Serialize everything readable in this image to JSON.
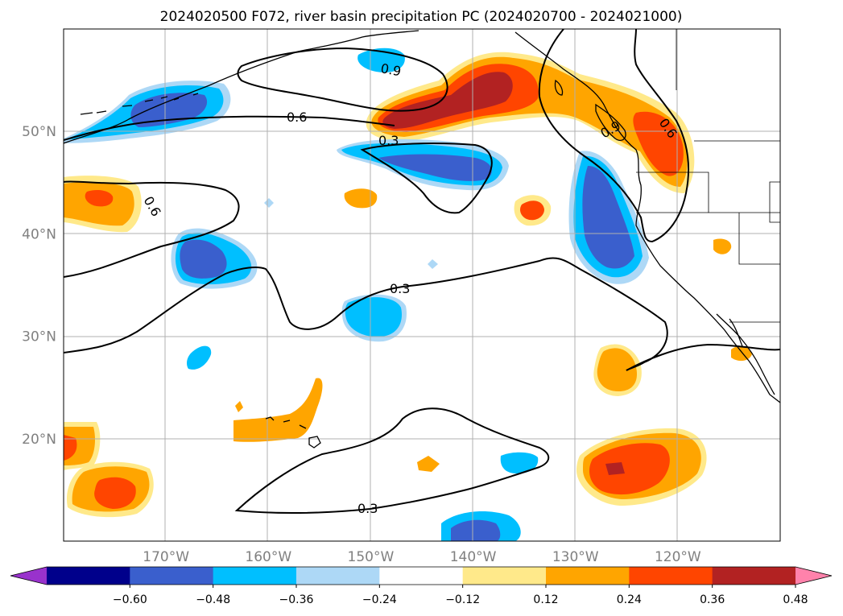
{
  "chart_data": {
    "type": "contour-map",
    "title": "2024020500 F072, river basin precipitation PC (2024020700 - 2024021000)",
    "lon_range": [
      -180,
      -110
    ],
    "lat_range": [
      10,
      60
    ],
    "lon_ticks": [
      {
        "value": -170,
        "label": "170°W"
      },
      {
        "value": -160,
        "label": "160°W"
      },
      {
        "value": -150,
        "label": "150°W"
      },
      {
        "value": -140,
        "label": "140°W"
      },
      {
        "value": -130,
        "label": "130°W"
      },
      {
        "value": -120,
        "label": "120°W"
      }
    ],
    "lat_ticks": [
      {
        "value": 50,
        "label": "50°N"
      },
      {
        "value": 40,
        "label": "40°N"
      },
      {
        "value": 30,
        "label": "30°N"
      },
      {
        "value": 20,
        "label": "20°N"
      }
    ],
    "grid": true,
    "colorbar": {
      "levels": [
        -0.6,
        -0.48,
        -0.36,
        -0.24,
        -0.12,
        0.12,
        0.24,
        0.36,
        0.48,
        0.6
      ],
      "labels": [
        "−0.60",
        "−0.48",
        "−0.36",
        "−0.24",
        "−0.12",
        "0.12",
        "0.24",
        "0.36",
        "0.48",
        "0.60"
      ],
      "colors": [
        "#9932cc",
        "#00008b",
        "#3a5fcd",
        "#00bfff",
        "#add8f6",
        "#ffffff",
        "#ffe98a",
        "#ffa500",
        "#ff4500",
        "#b22222",
        "#ff82ab"
      ],
      "extend": "both"
    },
    "contour_lines": [
      {
        "value": 0.3,
        "labels": [
          "0.3",
          "0.3",
          "0.3"
        ]
      },
      {
        "value": 0.6,
        "labels": [
          "0.6",
          "0.6",
          "0.6"
        ]
      },
      {
        "value": 0.9,
        "labels": [
          "0.9",
          "0.9"
        ]
      }
    ],
    "filled_regions": [
      {
        "value": 0.48,
        "lon": -146,
        "lat": 53
      },
      {
        "value": 0.36,
        "lon": -125,
        "lat": 18
      },
      {
        "value": -0.36,
        "lon": -166,
        "lat": 38
      },
      {
        "value": -0.36,
        "lon": -127,
        "lat": 40
      },
      {
        "value": -0.36,
        "lon": -142,
        "lat": 47
      },
      {
        "value": -0.36,
        "lon": -167,
        "lat": 52
      },
      {
        "value": 0.36,
        "lon": -174,
        "lat": 15
      },
      {
        "value": 0.24,
        "lon": -124,
        "lat": 26
      },
      {
        "value": -0.24,
        "lon": -150,
        "lat": 31
      }
    ]
  }
}
